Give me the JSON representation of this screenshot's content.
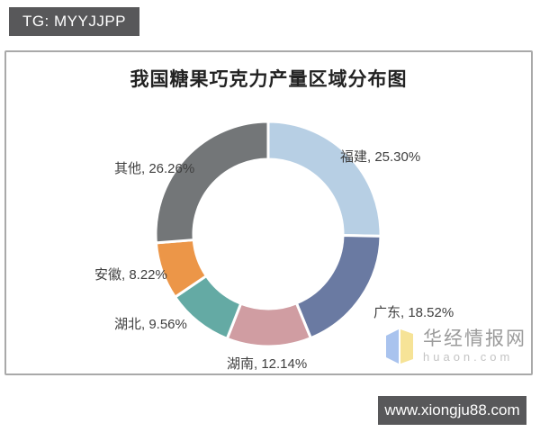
{
  "badge": {
    "text": "TG: MYYJJPP"
  },
  "chart_data": {
    "type": "pie",
    "subtype": "donut",
    "title": "我国糖果巧克力产量区域分布图",
    "categories": [
      "福建",
      "广东",
      "湖南",
      "湖北",
      "安徽",
      "其他"
    ],
    "values": [
      25.3,
      18.52,
      12.14,
      9.56,
      8.22,
      26.26
    ],
    "unit": "%",
    "labels": [
      "福建, 25.30%",
      "广东, 18.52%",
      "湖南, 12.14%",
      "湖北, 9.56%",
      "安徽, 8.22%",
      "其他, 26.26%"
    ],
    "colors": [
      "#b7cfe4",
      "#6a7aa2",
      "#d09da2",
      "#64aaa4",
      "#ec9648",
      "#737678"
    ],
    "start_angle_deg": 0,
    "direction": "clockwise",
    "inner_radius_ratio": 0.66,
    "legend": "none",
    "label_position": "outside"
  },
  "watermark": {
    "site_name": "华经情报网",
    "site_url": "huaon.com",
    "logo_left_color": "#a9c3ee",
    "logo_right_color": "#f6e397"
  },
  "footer": {
    "url": "www.xiongju88.com"
  }
}
